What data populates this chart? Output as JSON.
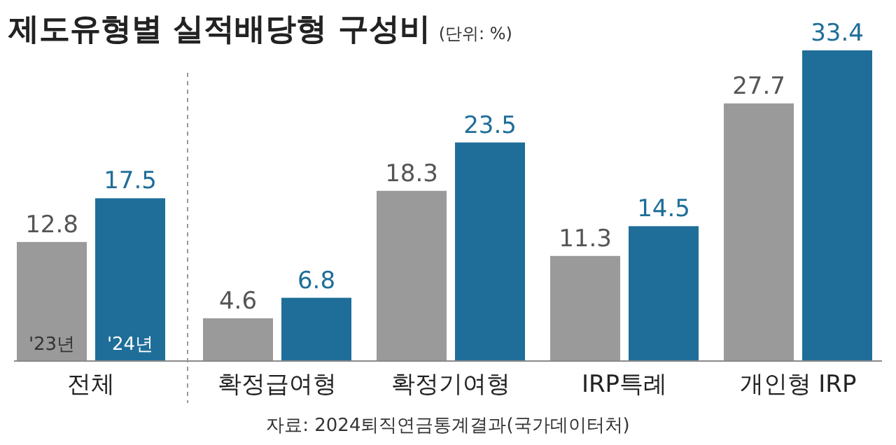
{
  "chart_data": {
    "type": "bar",
    "title": "제도유형별 실적배당형 구성비",
    "subtitle": "(단위: %)",
    "categories": [
      "전체",
      "확정급여형",
      "확정기여형",
      "IRP특례",
      "개인형 IRP"
    ],
    "series": [
      {
        "name": "'23년",
        "color": "#9a9a9a",
        "values": [
          12.8,
          4.6,
          18.3,
          11.3,
          27.7
        ]
      },
      {
        "name": "'24년",
        "color": "#1f6e99",
        "values": [
          17.5,
          6.8,
          23.5,
          14.5,
          33.4
        ]
      }
    ],
    "data_labels": true,
    "annotations": [
      "자료: 2024퇴직연금통계결과(국가데이터처)"
    ]
  }
}
